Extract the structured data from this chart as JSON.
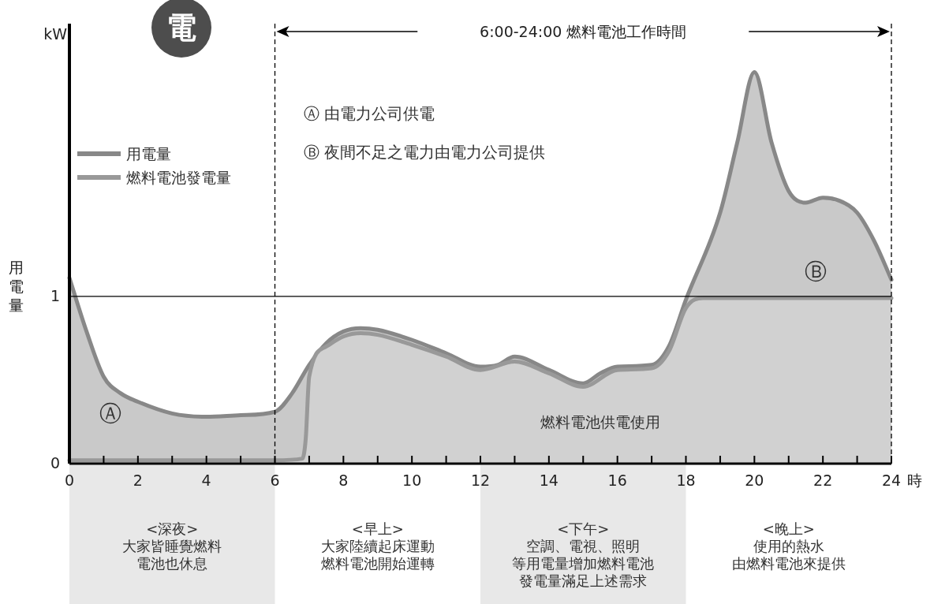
{
  "chart_data": {
    "type": "area",
    "ylabel": "用電量",
    "xlabel": "時",
    "xlim": [
      0,
      24
    ],
    "ylim": [
      0,
      2.63
    ],
    "xticks": [
      0,
      {
        "value": 1,
        "label": null
      },
      2,
      {
        "value": 3,
        "label": null
      },
      4,
      {
        "value": 5,
        "label": null
      },
      6,
      {
        "value": 7,
        "label": null
      },
      8,
      {
        "value": 9,
        "label": null
      },
      10,
      {
        "value": 11,
        "label": null
      },
      12,
      {
        "value": 13,
        "label": null
      },
      14,
      {
        "value": 15,
        "label": null
      },
      16,
      {
        "value": 17,
        "label": null
      },
      18,
      {
        "value": 19,
        "label": null
      },
      20,
      {
        "value": 21,
        "label": null
      },
      22,
      {
        "value": 23,
        "label": null
      },
      24
    ],
    "yticks": [
      0,
      1
    ],
    "legend": "top left",
    "grid": false,
    "series": [
      {
        "name": "用電量",
        "color": "#888888",
        "x": [
          0,
          0.5,
          1,
          1.5,
          2,
          3,
          4,
          5,
          6,
          6.5,
          7,
          7.5,
          8,
          8.5,
          9,
          10,
          11,
          12,
          12.5,
          13,
          14,
          15,
          15.5,
          16,
          17,
          17.5,
          18,
          19,
          19.5,
          20,
          20.5,
          21,
          21.5,
          22,
          22.5,
          23,
          23.5,
          24
        ],
        "values": [
          1.11,
          0.79,
          0.52,
          0.42,
          0.37,
          0.3,
          0.28,
          0.29,
          0.31,
          0.42,
          0.59,
          0.72,
          0.79,
          0.81,
          0.8,
          0.74,
          0.66,
          0.58,
          0.59,
          0.64,
          0.56,
          0.48,
          0.54,
          0.58,
          0.59,
          0.7,
          0.98,
          1.5,
          1.92,
          2.34,
          1.92,
          1.63,
          1.56,
          1.59,
          1.57,
          1.5,
          1.33,
          1.1
        ]
      },
      {
        "name": "燃料電池發電量",
        "color": "#999999",
        "x": [
          0,
          2,
          4,
          6,
          6.8,
          6.9,
          7,
          7.5,
          8,
          8.5,
          9,
          10,
          11,
          12,
          13,
          14,
          15,
          16,
          17,
          17.5,
          18,
          18.5,
          19,
          20,
          21,
          22,
          23,
          24
        ],
        "values": [
          0.02,
          0.02,
          0.02,
          0.02,
          0.03,
          0.15,
          0.52,
          0.7,
          0.76,
          0.78,
          0.77,
          0.71,
          0.64,
          0.56,
          0.61,
          0.54,
          0.46,
          0.56,
          0.57,
          0.67,
          0.93,
          0.99,
          0.99,
          0.99,
          0.99,
          0.99,
          0.99,
          0.99
        ]
      }
    ],
    "ref_lines": [
      {
        "axis": "y",
        "value": 1,
        "color": "#000000",
        "line_style": "solid"
      },
      {
        "axis": "x",
        "value": 6,
        "color": "#000000",
        "line_style": "dashed"
      },
      {
        "axis": "x",
        "value": 24,
        "color": "#000000",
        "line_style": "dashed"
      }
    ],
    "annotations": [
      "kW",
      "電",
      "6:00-24:00 燃料電池工作時間",
      "Ⓐ 由電力公司供電",
      "Ⓑ 夜間不足之電力由電力公司提供",
      "Ⓐ",
      "Ⓑ",
      "燃料電池供電使用",
      "<深夜>",
      "大家皆睡覺燃料",
      "電池也休息",
      "<早上>",
      "大家陸續起床運動",
      "燃料電池開始運轉",
      "<下午>",
      "空調、電視、照明",
      "等用電量增加燃料電池",
      "發電量滿足上述需求",
      "<晚上>",
      "使用的熱水",
      "由燃料電池來提供"
    ]
  }
}
